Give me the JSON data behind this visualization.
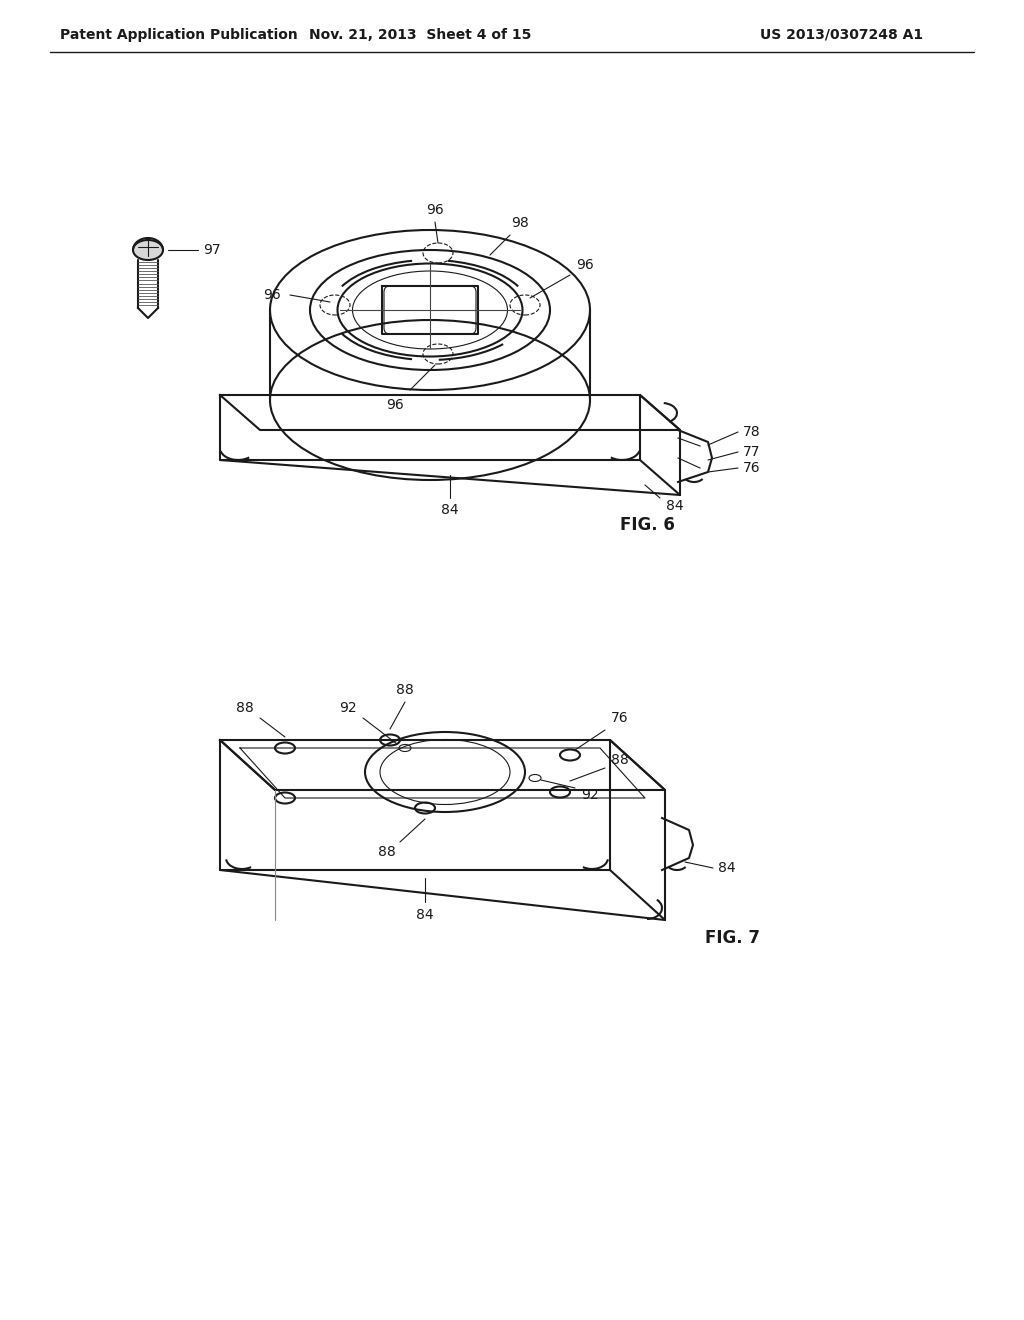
{
  "background_color": "#ffffff",
  "header_left": "Patent Application Publication",
  "header_center": "Nov. 21, 2013  Sheet 4 of 15",
  "header_right": "US 2013/0307248 A1",
  "fig6_label": "FIG. 6",
  "fig7_label": "FIG. 7",
  "line_color": "#1a1a1a",
  "text_color": "#1a1a1a",
  "font_size_header": 10,
  "font_size_label": 12,
  "font_size_ref": 10
}
